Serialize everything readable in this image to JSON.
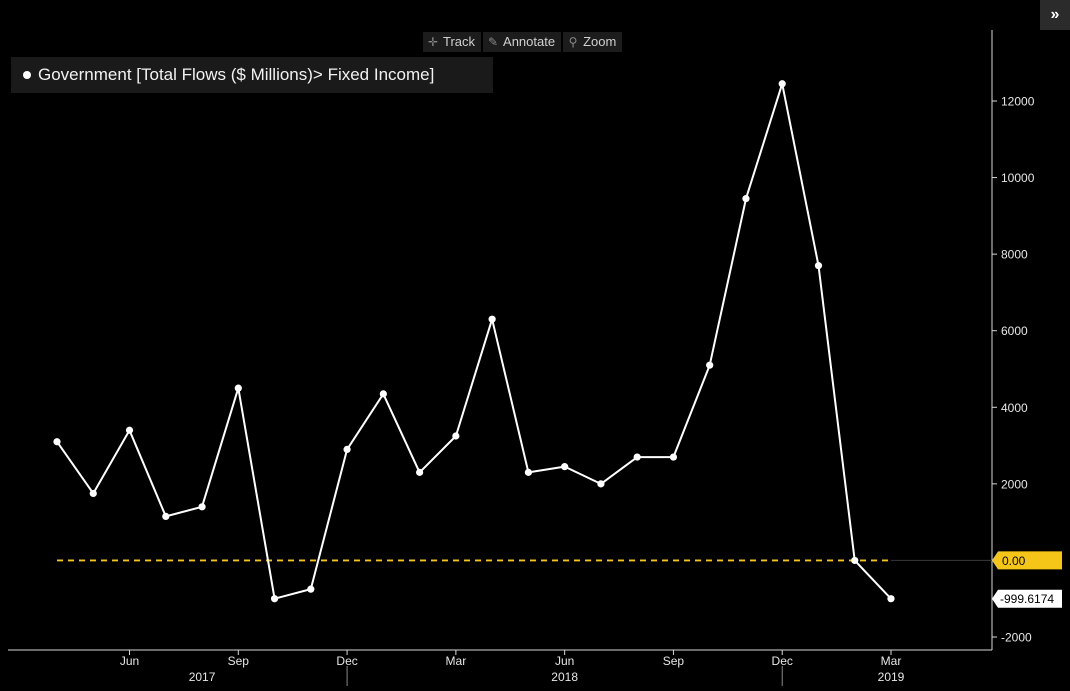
{
  "toolbar": {
    "track_label": "Track",
    "annotate_label": "Annotate",
    "zoom_label": "Zoom"
  },
  "expand_label": "»",
  "chart_data": {
    "type": "line",
    "title": "",
    "legend": [
      {
        "label": "Government [Total Flows ($ Millions)> Fixed Income]",
        "position": "top-left"
      }
    ],
    "xlabel": "",
    "ylabel": "",
    "ylim": [
      -2500,
      13000
    ],
    "y_ticks": [
      -2000,
      2000,
      4000,
      6000,
      8000,
      10000,
      12000
    ],
    "x_ticks": [
      {
        "label": "Jun",
        "x": "2017-06"
      },
      {
        "label": "Sep",
        "x": "2017-09"
      },
      {
        "label": "Dec",
        "x": "2017-12"
      },
      {
        "label": "Mar",
        "x": "2018-03"
      },
      {
        "label": "Jun",
        "x": "2018-06"
      },
      {
        "label": "Sep",
        "x": "2018-09"
      },
      {
        "label": "Dec",
        "x": "2018-12"
      },
      {
        "label": "Mar",
        "x": "2019-03"
      }
    ],
    "year_labels": [
      {
        "label": "2017",
        "x": "2017-08"
      },
      {
        "label": "2018",
        "x": "2018-06"
      },
      {
        "label": "2019",
        "x": "2019-03"
      }
    ],
    "year_dividers": [
      "2017-12",
      "2018-12"
    ],
    "grid": false,
    "series": [
      {
        "name": "Government [Total Flows ($ Millions)> Fixed Income]",
        "color": "#ffffff",
        "x": [
          "2017-04",
          "2017-05",
          "2017-06",
          "2017-07",
          "2017-08",
          "2017-09",
          "2017-10",
          "2017-11",
          "2017-12",
          "2018-01",
          "2018-02",
          "2018-03",
          "2018-04",
          "2018-05",
          "2018-06",
          "2018-07",
          "2018-08",
          "2018-09",
          "2018-10",
          "2018-11",
          "2018-12",
          "2019-01",
          "2019-02",
          "2019-03"
        ],
        "values": [
          3100,
          1750,
          3400,
          1150,
          1400,
          4500,
          -1000,
          -750,
          2900,
          4350,
          2300,
          3250,
          6300,
          2300,
          2450,
          2000,
          2700,
          2700,
          5100,
          9450,
          12450,
          7700,
          0,
          -999.6174
        ]
      }
    ],
    "reference_line": {
      "value": 0,
      "label": "0.00",
      "color": "#f5c518"
    },
    "last_value_label": "-999.6174"
  }
}
